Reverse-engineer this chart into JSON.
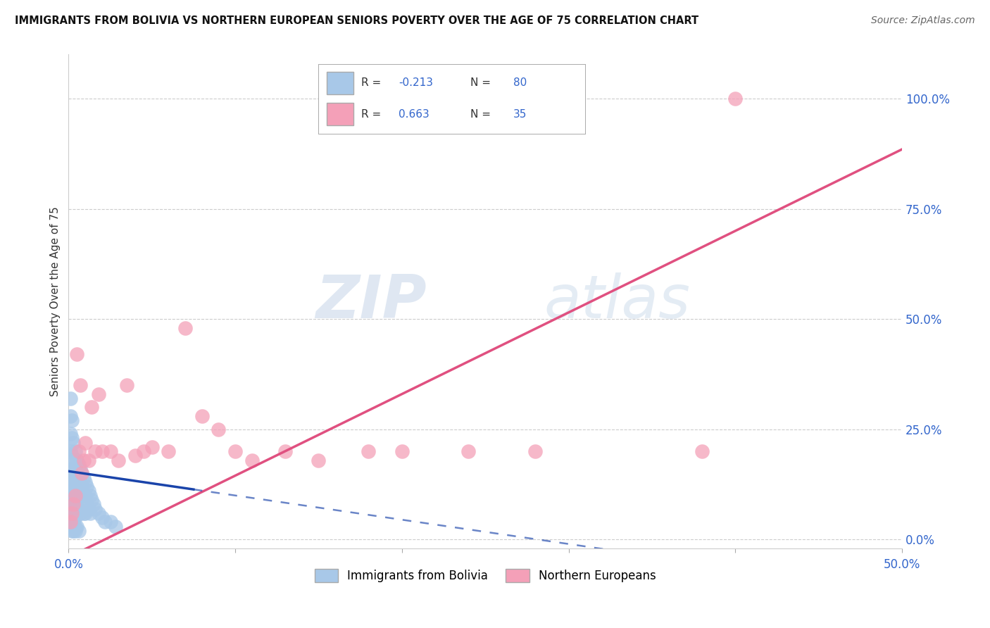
{
  "title": "IMMIGRANTS FROM BOLIVIA VS NORTHERN EUROPEAN SENIORS POVERTY OVER THE AGE OF 75 CORRELATION CHART",
  "source": "Source: ZipAtlas.com",
  "ylabel": "Seniors Poverty Over the Age of 75",
  "xlim": [
    0.0,
    0.5
  ],
  "ylim": [
    -0.02,
    1.1
  ],
  "ytick_vals": [
    0.0,
    0.25,
    0.5,
    0.75,
    1.0
  ],
  "ytick_right_labels": [
    "0.0%",
    "25.0%",
    "50.0%",
    "75.0%",
    "100.0%"
  ],
  "xtick_positions": [
    0.0,
    0.1,
    0.2,
    0.3,
    0.4,
    0.5
  ],
  "xticklabels": [
    "0.0%",
    "",
    "",
    "",
    "",
    "50.0%"
  ],
  "bolivia_R": -0.213,
  "bolivia_N": 80,
  "northern_R": 0.663,
  "northern_N": 35,
  "bolivia_color": "#a8c8e8",
  "northern_color": "#f4a0b8",
  "bolivia_line_color": "#1a44aa",
  "northern_line_color": "#e05080",
  "legend_bolivia_label": "Immigrants from Bolivia",
  "legend_northern_label": "Northern Europeans",
  "watermark_zip": "ZIP",
  "watermark_atlas": "atlas",
  "bolivia_x": [
    0.001,
    0.001,
    0.001,
    0.001,
    0.001,
    0.001,
    0.001,
    0.001,
    0.001,
    0.001,
    0.002,
    0.002,
    0.002,
    0.002,
    0.002,
    0.002,
    0.002,
    0.002,
    0.002,
    0.002,
    0.003,
    0.003,
    0.003,
    0.003,
    0.003,
    0.003,
    0.003,
    0.003,
    0.004,
    0.004,
    0.004,
    0.004,
    0.004,
    0.004,
    0.005,
    0.005,
    0.005,
    0.005,
    0.005,
    0.006,
    0.006,
    0.006,
    0.006,
    0.007,
    0.007,
    0.007,
    0.007,
    0.008,
    0.008,
    0.008,
    0.009,
    0.009,
    0.009,
    0.01,
    0.01,
    0.01,
    0.011,
    0.011,
    0.012,
    0.012,
    0.013,
    0.013,
    0.014,
    0.015,
    0.016,
    0.018,
    0.02,
    0.022,
    0.025,
    0.028,
    0.001,
    0.001,
    0.002,
    0.002,
    0.003,
    0.003,
    0.004,
    0.004,
    0.005,
    0.006
  ],
  "bolivia_y": [
    0.32,
    0.28,
    0.24,
    0.2,
    0.16,
    0.14,
    0.12,
    0.1,
    0.08,
    0.05,
    0.27,
    0.23,
    0.19,
    0.16,
    0.13,
    0.11,
    0.09,
    0.07,
    0.05,
    0.03,
    0.22,
    0.18,
    0.15,
    0.12,
    0.1,
    0.08,
    0.06,
    0.04,
    0.2,
    0.16,
    0.13,
    0.1,
    0.08,
    0.05,
    0.18,
    0.15,
    0.12,
    0.09,
    0.06,
    0.17,
    0.14,
    0.11,
    0.07,
    0.16,
    0.13,
    0.1,
    0.06,
    0.15,
    0.12,
    0.08,
    0.14,
    0.1,
    0.06,
    0.13,
    0.1,
    0.06,
    0.12,
    0.08,
    0.11,
    0.07,
    0.1,
    0.06,
    0.09,
    0.08,
    0.07,
    0.06,
    0.05,
    0.04,
    0.04,
    0.03,
    0.05,
    0.03,
    0.04,
    0.02,
    0.04,
    0.02,
    0.03,
    0.02,
    0.03,
    0.02
  ],
  "northern_x": [
    0.001,
    0.002,
    0.003,
    0.004,
    0.005,
    0.006,
    0.007,
    0.008,
    0.009,
    0.01,
    0.012,
    0.014,
    0.016,
    0.018,
    0.02,
    0.025,
    0.03,
    0.035,
    0.04,
    0.045,
    0.05,
    0.06,
    0.07,
    0.08,
    0.09,
    0.1,
    0.11,
    0.13,
    0.15,
    0.18,
    0.2,
    0.24,
    0.28,
    0.38,
    0.4
  ],
  "northern_y": [
    0.04,
    0.06,
    0.08,
    0.1,
    0.42,
    0.2,
    0.35,
    0.15,
    0.18,
    0.22,
    0.18,
    0.3,
    0.2,
    0.33,
    0.2,
    0.2,
    0.18,
    0.35,
    0.19,
    0.2,
    0.21,
    0.2,
    0.48,
    0.28,
    0.25,
    0.2,
    0.18,
    0.2,
    0.18,
    0.2,
    0.2,
    0.2,
    0.2,
    0.2,
    1.0
  ]
}
